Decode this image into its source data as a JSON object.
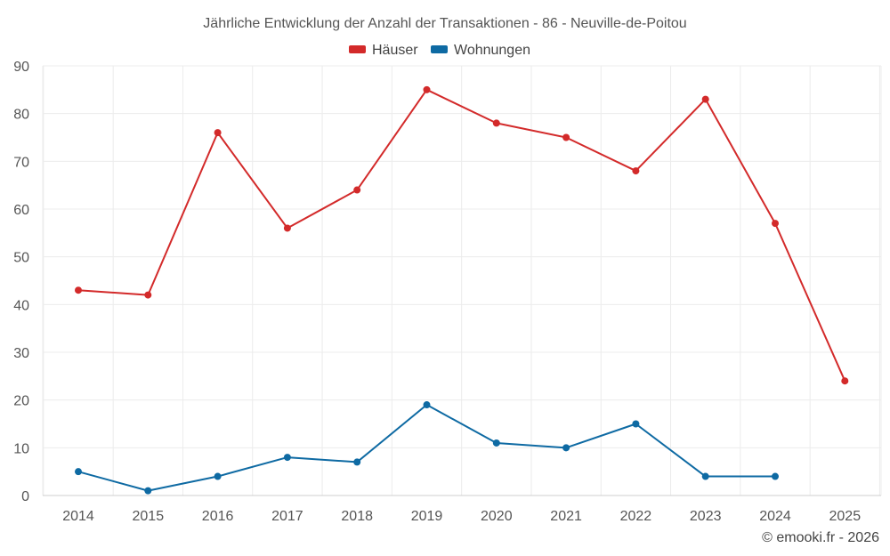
{
  "chart_data": {
    "type": "line",
    "title": "Jährliche Entwicklung der Anzahl der Transaktionen - 86 - Neuville-de-Poitou",
    "categories": [
      "2014",
      "2015",
      "2016",
      "2017",
      "2018",
      "2019",
      "2020",
      "2021",
      "2022",
      "2023",
      "2024",
      "2025"
    ],
    "ylim": [
      0,
      90
    ],
    "yticks": [
      0,
      10,
      20,
      30,
      40,
      50,
      60,
      70,
      80,
      90
    ],
    "grid": true,
    "legend_position": "top-center",
    "series": [
      {
        "name": "Häuser",
        "color": "#d32a2a",
        "values": [
          43,
          42,
          76,
          56,
          64,
          85,
          78,
          75,
          68,
          83,
          57,
          24
        ]
      },
      {
        "name": "Wohnungen",
        "color": "#0e6aa3",
        "values": [
          5,
          1,
          4,
          8,
          7,
          19,
          11,
          10,
          15,
          4,
          4,
          null
        ]
      }
    ]
  },
  "credit": "© emooki.fr - 2026"
}
